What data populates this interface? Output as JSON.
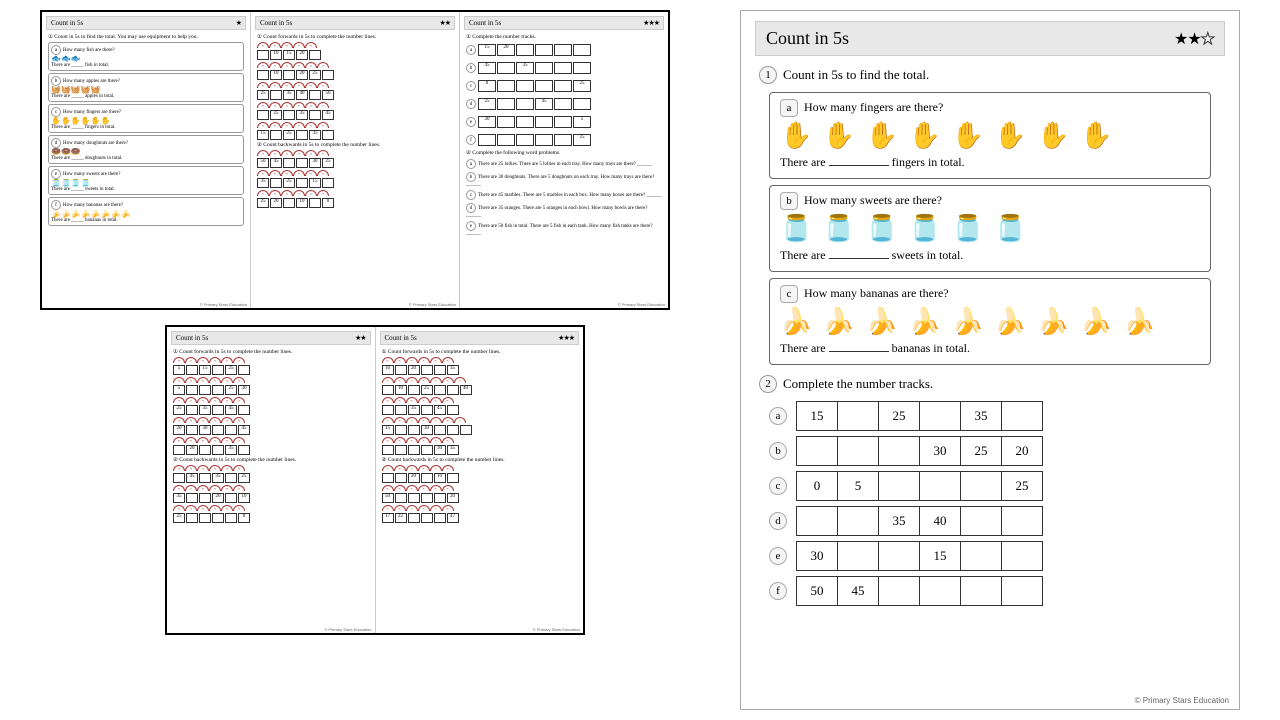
{
  "title": "Count in 5s",
  "footer": "© Primary Stars Education",
  "thumbs": {
    "row1": [
      {
        "stars": "★",
        "instr": "① Count in 5s to find the total. You may use equipment to help you.",
        "items": [
          {
            "l": "a",
            "q": "How many fish are there?",
            "icons": "🐟🐟🐟",
            "ans": "fish in total."
          },
          {
            "l": "b",
            "q": "How many apples are there?",
            "icons": "🧺🧺🧺🧺🧺",
            "ans": "apples in total."
          },
          {
            "l": "c",
            "q": "How many fingers are there?",
            "icons": "✋✋✋✋✋✋",
            "ans": "fingers in total."
          },
          {
            "l": "d",
            "q": "How many doughnuts are there?",
            "icons": "🍩🍩🍩",
            "ans": "doughnuts in total."
          },
          {
            "l": "e",
            "q": "How many sweets are there?",
            "icons": "🫙🫙🫙🫙",
            "ans": "sweets in total."
          },
          {
            "l": "f",
            "q": "How many bananas are there?",
            "icons": "🍌🍌🍌🍌🍌🍌🍌🍌",
            "ans": "bananas in total."
          }
        ]
      },
      {
        "stars": "★★",
        "instr1": "① Count forwards in 5s to complete the number lines.",
        "lines_f": [
          [
            "",
            "10",
            "15",
            "20",
            ""
          ],
          [
            "",
            "10",
            "",
            "20",
            "25",
            ""
          ],
          [
            "25",
            "",
            "35",
            "40",
            "",
            "50"
          ],
          [
            "",
            "25",
            "",
            "35",
            "",
            "45"
          ],
          [
            "15",
            "",
            "25",
            "",
            "35",
            ""
          ]
        ],
        "instr2": "② Count backwards in 5s to complete the number lines.",
        "lines_b": [
          [
            "50",
            "45",
            "",
            "",
            "30",
            "25"
          ],
          [
            "35",
            "",
            "25",
            "",
            "15",
            ""
          ],
          [
            "25",
            "20",
            "",
            "10",
            "",
            "0"
          ]
        ]
      },
      {
        "stars": "★★★",
        "instr1": "① Complete the number tracks.",
        "tracks": [
          {
            "l": "a",
            "v": [
              "15",
              "20",
              "",
              "",
              "",
              ""
            ]
          },
          {
            "l": "b",
            "v": [
              "45",
              "",
              "35",
              "",
              "",
              ""
            ]
          },
          {
            "l": "c",
            "v": [
              "0",
              "",
              "",
              "",
              "",
              "25"
            ]
          },
          {
            "l": "d",
            "v": [
              "25",
              "",
              "",
              "45",
              "",
              ""
            ]
          },
          {
            "l": "e",
            "v": [
              "30",
              "",
              "",
              "",
              "",
              "5"
            ]
          },
          {
            "l": "f",
            "v": [
              "",
              "",
              "",
              "",
              "",
              "25"
            ]
          }
        ],
        "instr2": "② Complete the following word problems.",
        "wp": [
          "There are 25 lollies. There are 5 lollies in each tray. How many trays are there? ______",
          "There are 30 doughnuts. There are 5 doughnuts on each tray. How many trays are there? ______",
          "There are 45 marbles. There are 5 marbles in each box. How many boxes are there? ______",
          "There are 35 oranges. There are 5 oranges in each bowl. How many bowls are there? ______",
          "There are 50 fish in total. There are 5 fish in each tank. How many fish tanks are there? ______"
        ]
      }
    ],
    "row2": [
      {
        "stars": "★★",
        "instr1": "① Count forwards in 5s to complete the number lines.",
        "lines_f": [
          [
            "5",
            "",
            "15",
            "",
            "25",
            ""
          ],
          [
            "5",
            "",
            "",
            "",
            "25",
            "30"
          ],
          [
            "25",
            "",
            "35",
            "",
            "45",
            ""
          ],
          [
            "20",
            "",
            "30",
            "",
            "",
            "45"
          ],
          [
            "",
            "20",
            "",
            "",
            "35",
            ""
          ]
        ],
        "instr2": "② Count backwards in 5s to complete the number lines.",
        "lines_b": [
          [
            "",
            "45",
            "",
            "35",
            "",
            "25"
          ],
          [
            "35",
            "",
            "",
            "20",
            "",
            "10"
          ],
          [
            "25",
            "",
            "",
            "",
            "",
            "0"
          ]
        ]
      },
      {
        "stars": "★★★",
        "instr1": "① Count forwards in 5s to complete the number lines.",
        "lines_f": [
          [
            "10",
            "",
            "20",
            "",
            "",
            "35"
          ],
          [
            "",
            "10",
            "",
            "25",
            "",
            "",
            "40"
          ],
          [
            "",
            "",
            "35",
            "",
            "45",
            ""
          ],
          [
            "15",
            "",
            "",
            "30",
            "",
            "",
            ""
          ],
          [
            "",
            "",
            "",
            "",
            "30",
            "35"
          ]
        ],
        "instr2": "② Count backwards in 5s to complete the number lines.",
        "lines_b": [
          [
            "",
            "",
            "20",
            "",
            "10",
            ""
          ],
          [
            "50",
            "",
            "",
            "",
            "",
            "20"
          ],
          [
            "17",
            "22",
            "",
            "",
            "",
            "47"
          ]
        ]
      }
    ]
  },
  "main": {
    "stars_filled": 2,
    "stars_total": 3,
    "task1": {
      "instr": "Count in 5s to find the total.",
      "items": [
        {
          "l": "a",
          "q": "How many fingers are there?",
          "type": "hand",
          "count": 8,
          "ans": "fingers in total."
        },
        {
          "l": "b",
          "q": "How many sweets are there?",
          "type": "jar",
          "count": 6,
          "ans": "sweets in total."
        },
        {
          "l": "c",
          "q": "How many bananas are there?",
          "type": "banana",
          "count": 9,
          "ans": "bananas in total."
        }
      ]
    },
    "task2": {
      "instr": "Complete the number tracks.",
      "tracks": [
        {
          "l": "a",
          "v": [
            "15",
            "",
            "25",
            "",
            "35",
            ""
          ]
        },
        {
          "l": "b",
          "v": [
            "",
            "",
            "",
            "30",
            "25",
            "20"
          ]
        },
        {
          "l": "c",
          "v": [
            "0",
            "5",
            "",
            "",
            "",
            "25"
          ]
        },
        {
          "l": "d",
          "v": [
            "",
            "",
            "35",
            "40",
            "",
            ""
          ]
        },
        {
          "l": "e",
          "v": [
            "30",
            "",
            "",
            "15",
            "",
            ""
          ]
        },
        {
          "l": "f",
          "v": [
            "50",
            "45",
            "",
            "",
            "",
            ""
          ]
        }
      ]
    }
  }
}
